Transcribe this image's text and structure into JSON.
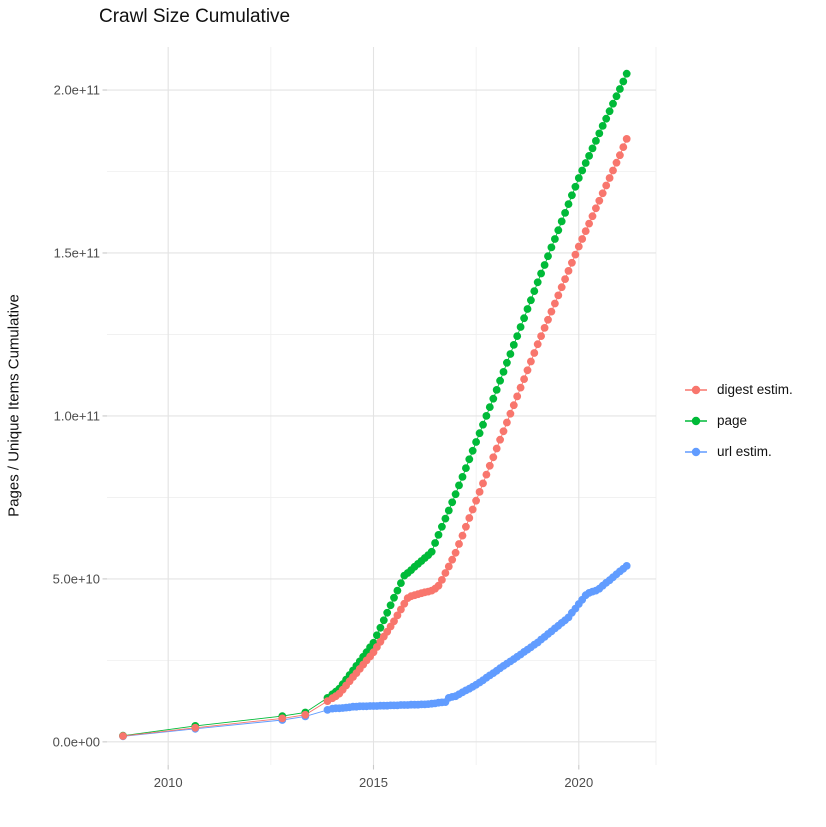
{
  "chart_data": {
    "type": "scatter",
    "title": "Crawl Size Cumulative",
    "xlabel": "",
    "ylabel": "Pages / Unique Items Cumulative",
    "legend_position": "right",
    "grid": true,
    "x_range": [
      2008.51,
      2021.88
    ],
    "y_range_billion": [
      -7.1,
      213.2
    ],
    "x_ticks": {
      "labels": [
        "2010",
        "2015",
        "2020"
      ],
      "years": [
        2010,
        2015,
        2020
      ],
      "minor_years": [
        2012.5,
        2017.5,
        2021.88
      ]
    },
    "y_ticks": {
      "labels": [
        "0.0e+00",
        "5.0e+10",
        "1.0e+11",
        "1.5e+11",
        "2.0e+11"
      ],
      "values_billion": [
        0,
        50,
        100,
        150,
        200
      ],
      "minor_values_billion": [
        25,
        75,
        125,
        175
      ]
    },
    "x_years": [
      2008.9,
      2010.66,
      2012.78,
      2013.34,
      2013.88,
      2014.0,
      2014.083,
      2014.167,
      2014.25,
      2014.333,
      2014.417,
      2014.5,
      2014.583,
      2014.667,
      2014.75,
      2014.833,
      2014.917,
      2015.0,
      2015.083,
      2015.167,
      2015.25,
      2015.333,
      2015.417,
      2015.5,
      2015.583,
      2015.667,
      2015.75,
      2015.833,
      2015.917,
      2016.0,
      2016.083,
      2016.167,
      2016.25,
      2016.333,
      2016.417,
      2016.5,
      2016.583,
      2016.667,
      2016.75,
      2016.833,
      2016.917,
      2017.0,
      2017.083,
      2017.167,
      2017.25,
      2017.333,
      2017.417,
      2017.5,
      2017.583,
      2017.667,
      2017.75,
      2017.833,
      2017.917,
      2018.0,
      2018.083,
      2018.167,
      2018.25,
      2018.333,
      2018.417,
      2018.5,
      2018.583,
      2018.667,
      2018.75,
      2018.833,
      2018.917,
      2019.0,
      2019.083,
      2019.167,
      2019.25,
      2019.333,
      2019.417,
      2019.5,
      2019.583,
      2019.667,
      2019.75,
      2019.833,
      2019.917,
      2020.0,
      2020.083,
      2020.167,
      2020.25,
      2020.333,
      2020.417,
      2020.5,
      2020.583,
      2020.667,
      2020.75,
      2020.833,
      2020.917,
      2021.0,
      2021.083,
      2021.167
    ],
    "series": [
      {
        "name": "digest estim.",
        "color": "#F8766D",
        "values_in_billions": [
          1.8,
          4.3,
          7.2,
          8.3,
          12.5,
          13.4,
          14.0,
          14.8,
          16.0,
          17.3,
          18.6,
          19.9,
          21.1,
          22.4,
          23.7,
          25.0,
          26.2,
          27.5,
          29.1,
          30.7,
          32.3,
          33.8,
          35.4,
          37.0,
          38.8,
          40.6,
          42.4,
          44.1,
          44.7,
          45.0,
          45.3,
          45.6,
          45.9,
          46.1,
          46.4,
          47.0,
          47.9,
          49.7,
          51.8,
          53.8,
          55.9,
          58.0,
          60.7,
          63.3,
          66.0,
          68.7,
          71.3,
          74.0,
          76.7,
          79.3,
          82.0,
          84.7,
          87.3,
          90.0,
          92.7,
          95.3,
          98.0,
          100.7,
          103.3,
          106.0,
          108.7,
          111.3,
          114.0,
          116.7,
          119.3,
          122.0,
          124.5,
          127.0,
          129.5,
          132.0,
          134.5,
          137.0,
          139.5,
          142.0,
          144.5,
          147.0,
          149.5,
          152.0,
          154.3,
          156.7,
          159.0,
          161.3,
          163.7,
          166.0,
          168.3,
          170.7,
          173.0,
          175.3,
          177.7,
          180.0,
          182.5,
          185.0
        ]
      },
      {
        "name": "page",
        "color": "#00BA38",
        "values_in_billions": [
          1.9,
          4.9,
          7.9,
          9.0,
          13.5,
          14.6,
          15.4,
          16.3,
          17.7,
          19.1,
          20.5,
          21.9,
          23.3,
          24.7,
          26.1,
          27.5,
          29.0,
          30.4,
          32.7,
          35.0,
          37.3,
          39.6,
          41.9,
          44.2,
          46.4,
          48.7,
          51.0,
          51.8,
          52.7,
          53.7,
          54.6,
          55.5,
          56.4,
          57.3,
          58.3,
          61.0,
          63.5,
          66.0,
          68.5,
          71.0,
          73.5,
          76.0,
          78.7,
          81.3,
          84.0,
          86.7,
          89.3,
          92.0,
          94.7,
          97.3,
          100.0,
          102.7,
          105.3,
          108.0,
          110.8,
          113.5,
          116.3,
          119.0,
          121.8,
          124.5,
          127.3,
          130.0,
          132.8,
          135.5,
          138.3,
          141.0,
          143.7,
          146.3,
          149.0,
          151.7,
          154.3,
          157.0,
          159.7,
          162.3,
          165.0,
          167.7,
          170.3,
          173.0,
          175.3,
          177.6,
          179.8,
          182.1,
          184.4,
          186.7,
          189.0,
          191.2,
          193.5,
          195.8,
          198.1,
          200.3,
          202.6,
          205.0
        ]
      },
      {
        "name": "url estim.",
        "color": "#619CFF",
        "values_in_billions": [
          1.7,
          4.0,
          6.7,
          7.8,
          9.8,
          10.2,
          10.3,
          10.3,
          10.4,
          10.5,
          10.6,
          10.8,
          10.8,
          10.9,
          10.9,
          10.9,
          11.0,
          11.0,
          11.0,
          11.1,
          11.1,
          11.1,
          11.2,
          11.2,
          11.2,
          11.3,
          11.3,
          11.3,
          11.4,
          11.4,
          11.4,
          11.5,
          11.5,
          11.6,
          11.7,
          11.8,
          12.0,
          12.1,
          12.2,
          13.5,
          13.8,
          14.0,
          14.6,
          15.2,
          15.8,
          16.3,
          16.9,
          17.5,
          18.2,
          18.9,
          19.7,
          20.4,
          21.1,
          21.8,
          22.6,
          23.3,
          24.0,
          24.7,
          25.4,
          26.1,
          26.8,
          27.6,
          28.3,
          29.0,
          29.8,
          30.5,
          31.4,
          32.2,
          33.1,
          33.9,
          34.8,
          35.6,
          36.5,
          37.3,
          38.2,
          39.6,
          40.9,
          42.3,
          43.6,
          45.0,
          45.7,
          46.1,
          46.4,
          47.0,
          47.9,
          48.8,
          49.6,
          50.5,
          51.4,
          52.3,
          53.1,
          54.0
        ]
      }
    ],
    "style": {
      "grid_major_color": "#e3e3e3",
      "grid_minor_color": "#efefef",
      "tick_color": "#c9c9c9",
      "tick_label_color": "#4d4d4d",
      "point_radius": 3.9
    }
  }
}
